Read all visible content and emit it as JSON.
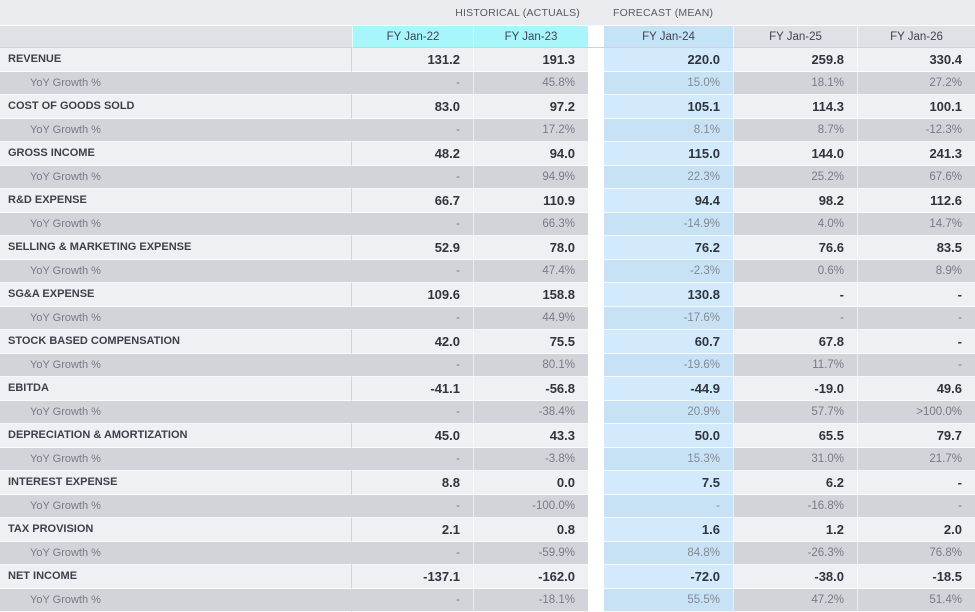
{
  "table": {
    "header_groups": [
      {
        "label": "HISTORICAL (ACTUALS)"
      },
      {
        "label": "FORECAST (MEAN)"
      }
    ],
    "columns": [
      "FY Jan-22",
      "FY Jan-23",
      "FY Jan-24",
      "FY Jan-25",
      "FY Jan-26"
    ],
    "rows": [
      {
        "label": "REVENUE",
        "type": "metric",
        "values": [
          "131.2",
          "191.3",
          "220.0",
          "259.8",
          "330.4"
        ]
      },
      {
        "label": "YoY Growth %",
        "type": "yoy",
        "values": [
          "-",
          "45.8%",
          "15.0%",
          "18.1%",
          "27.2%"
        ]
      },
      {
        "label": "COST OF GOODS SOLD",
        "type": "metric",
        "values": [
          "83.0",
          "97.2",
          "105.1",
          "114.3",
          "100.1"
        ]
      },
      {
        "label": "YoY Growth %",
        "type": "yoy",
        "values": [
          "-",
          "17.2%",
          "8.1%",
          "8.7%",
          "-12.3%"
        ]
      },
      {
        "label": "GROSS INCOME",
        "type": "metric",
        "values": [
          "48.2",
          "94.0",
          "115.0",
          "144.0",
          "241.3"
        ]
      },
      {
        "label": "YoY Growth %",
        "type": "yoy",
        "values": [
          "-",
          "94.9%",
          "22.3%",
          "25.2%",
          "67.6%"
        ]
      },
      {
        "label": "R&D EXPENSE",
        "type": "metric",
        "values": [
          "66.7",
          "110.9",
          "94.4",
          "98.2",
          "112.6"
        ]
      },
      {
        "label": "YoY Growth %",
        "type": "yoy",
        "values": [
          "-",
          "66.3%",
          "-14.9%",
          "4.0%",
          "14.7%"
        ]
      },
      {
        "label": "SELLING & MARKETING EXPENSE",
        "type": "metric",
        "values": [
          "52.9",
          "78.0",
          "76.2",
          "76.6",
          "83.5"
        ]
      },
      {
        "label": "YoY Growth %",
        "type": "yoy",
        "values": [
          "-",
          "47.4%",
          "-2.3%",
          "0.6%",
          "8.9%"
        ]
      },
      {
        "label": "SG&A EXPENSE",
        "type": "metric",
        "values": [
          "109.6",
          "158.8",
          "130.8",
          "-",
          "-"
        ]
      },
      {
        "label": "YoY Growth %",
        "type": "yoy",
        "values": [
          "-",
          "44.9%",
          "-17.6%",
          "-",
          "-"
        ]
      },
      {
        "label": "STOCK BASED COMPENSATION",
        "type": "metric",
        "values": [
          "42.0",
          "75.5",
          "60.7",
          "67.8",
          "-"
        ]
      },
      {
        "label": "YoY Growth %",
        "type": "yoy",
        "values": [
          "-",
          "80.1%",
          "-19.6%",
          "11.7%",
          "-"
        ]
      },
      {
        "label": "EBITDA",
        "type": "metric",
        "values": [
          "-41.1",
          "-56.8",
          "-44.9",
          "-19.0",
          "49.6"
        ]
      },
      {
        "label": "YoY Growth %",
        "type": "yoy",
        "values": [
          "-",
          "-38.4%",
          "20.9%",
          "57.7%",
          ">100.0%"
        ]
      },
      {
        "label": "DEPRECIATION & AMORTIZATION",
        "type": "metric",
        "values": [
          "45.0",
          "43.3",
          "50.0",
          "65.5",
          "79.7"
        ]
      },
      {
        "label": "YoY Growth %",
        "type": "yoy",
        "values": [
          "-",
          "-3.8%",
          "15.3%",
          "31.0%",
          "21.7%"
        ]
      },
      {
        "label": "INTEREST EXPENSE",
        "type": "metric",
        "values": [
          "8.8",
          "0.0",
          "7.5",
          "6.2",
          "-"
        ]
      },
      {
        "label": "YoY Growth %",
        "type": "yoy",
        "values": [
          "-",
          "-100.0%",
          "-",
          "-16.8%",
          "-"
        ]
      },
      {
        "label": "TAX PROVISION",
        "type": "metric",
        "values": [
          "2.1",
          "0.8",
          "1.6",
          "1.2",
          "2.0"
        ]
      },
      {
        "label": "YoY Growth %",
        "type": "yoy",
        "values": [
          "-",
          "-59.9%",
          "84.8%",
          "-26.3%",
          "76.8%"
        ]
      },
      {
        "label": "NET INCOME",
        "type": "metric",
        "values": [
          "-137.1",
          "-162.0",
          "-72.0",
          "-38.0",
          "-18.5"
        ]
      },
      {
        "label": "YoY Growth %",
        "type": "yoy",
        "values": [
          "-",
          "-18.1%",
          "55.5%",
          "47.2%",
          "51.4%"
        ]
      }
    ]
  },
  "colors": {
    "header-strip-bg": "#eaebef",
    "plain-col-header-bg": "#dfe1e6",
    "historical-col-header-bg": "#a6f6fb",
    "forecast-col-header-bg": "#c4e3f6",
    "forecast-mean-cell-bg": "#d2eafc",
    "forecast-mean-yoy-bg": "#c8e2f5",
    "metric-row-bg": "#eff0f4",
    "yoy-row-bg": "#d2d4da",
    "metric-text": "#30343c",
    "yoy-text": "#767b85",
    "yoy-mean-text": "#828a95",
    "label-text": "#3c414a",
    "header-text": "#3f444d",
    "group-header-text": "#565b64"
  }
}
